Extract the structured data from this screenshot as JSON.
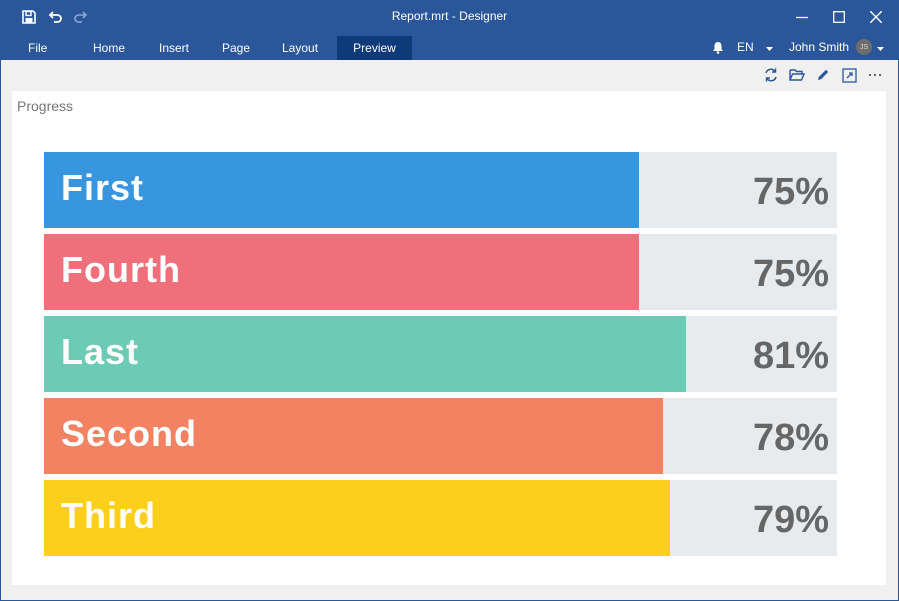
{
  "window": {
    "title": "Report.mrt - Designer"
  },
  "menu": {
    "items": [
      {
        "label": "File",
        "active": false
      },
      {
        "label": "Home",
        "active": false
      },
      {
        "label": "Insert",
        "active": false
      },
      {
        "label": "Page",
        "active": false
      },
      {
        "label": "Layout",
        "active": false
      },
      {
        "label": "Preview",
        "active": true
      }
    ],
    "language": "EN",
    "user_name": "John Smith",
    "user_initials": "JS"
  },
  "toolbar": {
    "icons": [
      "refresh-icon",
      "open-folder-icon",
      "edit-icon",
      "fullscreen-icon",
      "more-icon"
    ]
  },
  "report": {
    "title": "Progress",
    "bars": [
      {
        "label": "First",
        "value_text": "75%",
        "fill_fraction": 0.75,
        "color": "#3796dd"
      },
      {
        "label": "Fourth",
        "value_text": "75%",
        "fill_fraction": 0.75,
        "color": "#ef6f7a"
      },
      {
        "label": "Last",
        "value_text": "81%",
        "fill_fraction": 0.81,
        "color": "#6ccbb5"
      },
      {
        "label": "Second",
        "value_text": "78%",
        "fill_fraction": 0.78,
        "color": "#f38262"
      },
      {
        "label": "Third",
        "value_text": "79%",
        "fill_fraction": 0.79,
        "color": "#fccf1a"
      }
    ]
  }
}
